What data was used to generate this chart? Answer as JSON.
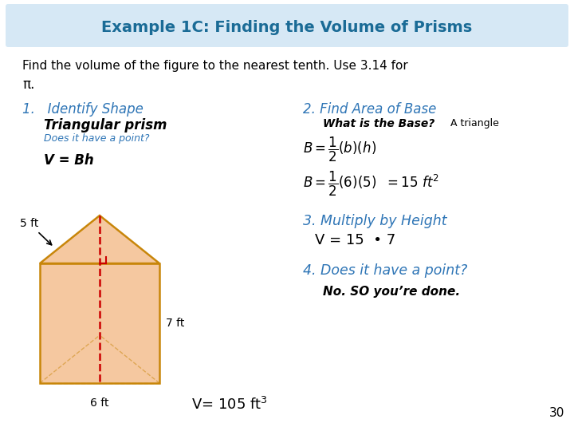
{
  "title": "Example 1C: Finding the Volume of Prisms",
  "title_color": "#1A6B96",
  "bg_color": "#FFFFFF",
  "subtitle_line1": "Find the volume of the figure to the nearest tenth. Use 3.14 for",
  "subtitle_line2": "π.",
  "step1_header": "1.   Identify Shape",
  "step1_body1": "Triangular prism",
  "step1_body2": "Does it have a point?",
  "step1_body3": "V = Bh",
  "step2_header": "2. Find Area of Base",
  "step3_header": "3. Multiply by Height",
  "step3_body": "V = 15  • 7",
  "step4_header": "4. Does it have a point?",
  "step4_body": "No. SO you’re done.",
  "page_number": "30",
  "blue_color": "#2E75B6",
  "dark_blue": "#1A6B96",
  "black_color": "#000000",
  "prism_fill": "#FADADB",
  "prism_fill2": "#F5C8A0",
  "prism_edge": "#C8860A",
  "dashed_color": "#CC0000",
  "title_bg": "#D6E8F5"
}
